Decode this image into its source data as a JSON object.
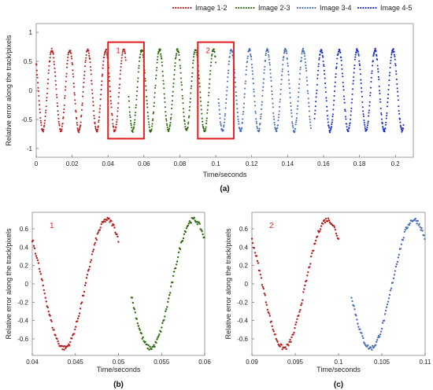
{
  "chart_data": [
    {
      "id": "a",
      "type": "scatter",
      "panel_label": "(a)",
      "xlabel": "Time/seconds",
      "ylabel": "Relative error along the track/pixels",
      "xlim": [
        0,
        0.21
      ],
      "ylim": [
        -1.15,
        1.15
      ],
      "xticks": [
        0,
        0.02,
        0.04,
        0.06,
        0.08,
        0.1,
        0.12,
        0.14,
        0.16,
        0.18,
        0.2
      ],
      "yticks": [
        -1,
        -0.5,
        0,
        0.5,
        1
      ],
      "legend_position": "top-right",
      "period": 0.01,
      "amplitude": 0.7,
      "series": [
        {
          "name": "Image 1-2",
          "color": "#b22222",
          "x_range": [
            0,
            0.05
          ]
        },
        {
          "name": "Image 2-3",
          "color": "#2e6b10",
          "x_range": [
            0.0515,
            0.1
          ]
        },
        {
          "name": "Image 3-4",
          "color": "#4a6fb5",
          "x_range": [
            0.1015,
            0.153
          ]
        },
        {
          "name": "Image 4-5",
          "color": "#1a2fc8",
          "x_range": [
            0.155,
            0.2045
          ]
        }
      ],
      "annotations": [
        {
          "label": "1",
          "x_range": [
            0.04,
            0.06
          ],
          "y_range": [
            -0.83,
            0.83
          ],
          "color": "#e02020"
        },
        {
          "label": "2",
          "x_range": [
            0.09,
            0.11
          ],
          "y_range": [
            -0.83,
            0.83
          ],
          "color": "#e02020"
        }
      ]
    },
    {
      "id": "b",
      "type": "scatter",
      "panel_label": "(b)",
      "inset_label": "1",
      "xlabel": "Time/seconds",
      "ylabel": "Relative error along the track/pixels",
      "xlim": [
        0.04,
        0.06
      ],
      "ylim": [
        -0.78,
        0.78
      ],
      "xticks": [
        0.04,
        0.045,
        0.05,
        0.055,
        0.06
      ],
      "yticks": [
        -0.6,
        -0.4,
        -0.2,
        0,
        0.2,
        0.4,
        0.6
      ],
      "series": [
        {
          "name": "Image 1-2",
          "color": "#b22222",
          "x_range": [
            0.04,
            0.05
          ]
        },
        {
          "name": "Image 2-3",
          "color": "#2e6b10",
          "x_range": [
            0.0515,
            0.06
          ]
        }
      ]
    },
    {
      "id": "c",
      "type": "scatter",
      "panel_label": "(c)",
      "inset_label": "2",
      "xlabel": "Time/seconds",
      "ylabel": "Relative error along the track/pixels",
      "xlim": [
        0.09,
        0.11
      ],
      "ylim": [
        -0.78,
        0.78
      ],
      "xticks": [
        0.09,
        0.095,
        0.1,
        0.105,
        0.11
      ],
      "yticks": [
        -0.6,
        -0.4,
        -0.2,
        0,
        0.2,
        0.4,
        0.6
      ],
      "series": [
        {
          "name": "Image 2-3",
          "color": "#b22222",
          "x_range": [
            0.09,
            0.1
          ]
        },
        {
          "name": "Image 3-4",
          "color": "#4a6fb5",
          "x_range": [
            0.1015,
            0.11
          ]
        }
      ]
    }
  ]
}
